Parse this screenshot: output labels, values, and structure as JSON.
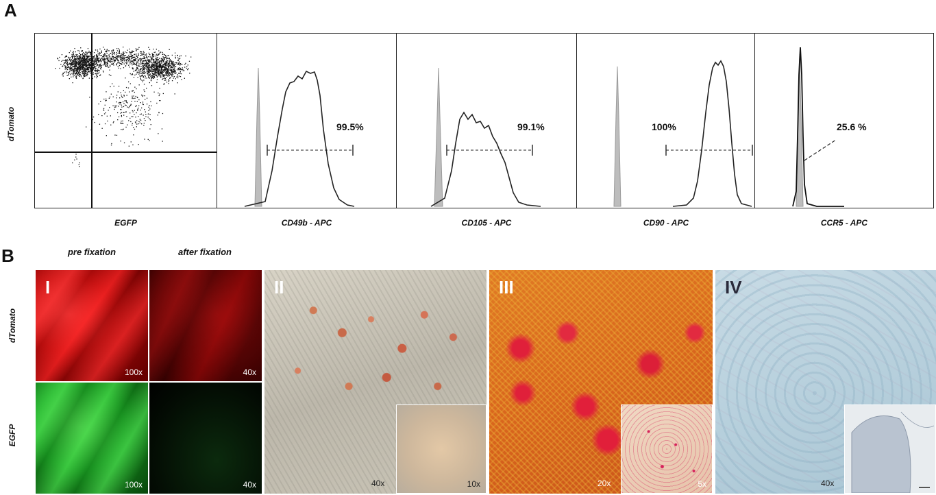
{
  "panel_a": {
    "letter": "A",
    "scatter": {
      "y_label": "dTomato",
      "x_label": "EGFP"
    },
    "histograms": [
      {
        "x_label": "CD49b - APC",
        "percent": "99.5%"
      },
      {
        "x_label": "CD105 - APC",
        "percent": "99.1%"
      },
      {
        "x_label": "CD90 - APC",
        "percent": "100%"
      },
      {
        "x_label": "CCR5 - APC",
        "percent": "25.6 %"
      }
    ]
  },
  "panel_b": {
    "letter": "B",
    "col_labels": [
      "pre fixation",
      "after fixation"
    ],
    "row_labels": [
      "dTomato",
      "EGFP"
    ],
    "sub_i": {
      "numeral": "I",
      "magnifications": [
        "100x",
        "40x",
        "100x",
        "40x"
      ]
    },
    "sub_ii": {
      "numeral": "II",
      "main_mag": "40x",
      "inset_mag": "10x"
    },
    "sub_iii": {
      "numeral": "III",
      "main_mag": "20x",
      "inset_mag": "5x"
    },
    "sub_iv": {
      "numeral": "IV",
      "main_mag": "40x"
    }
  },
  "colors": {
    "dtomato_red": "#c41010",
    "egfp_green": "#1fae2a",
    "histogram_gray": "#bdbdbd",
    "oil_red_bg": "#c9c4b6",
    "alizarin_orange": "#d9661d",
    "alcian_blue": "#b6cfdc"
  }
}
